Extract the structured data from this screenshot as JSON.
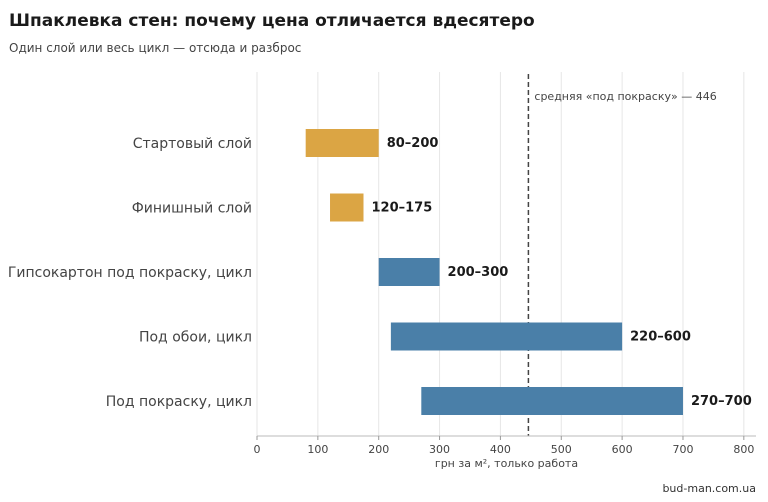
{
  "title": "Шпаклевка стен: почему цена отличается вдесятеро",
  "subtitle": "Один слой или весь цикл — отсюда и разброс",
  "source": "bud-man.com.ua",
  "colors": {
    "layer": "#dba544",
    "cycle": "#4a7fa8",
    "grid": "#e6e6e6",
    "reference_line": "#444444"
  },
  "chart_data": {
    "type": "bar",
    "orientation": "horizontal",
    "categories": [
      "Стартовый слой",
      "Финишный слой",
      "Гипсокартон под покраску, цикл",
      "Под обои, цикл",
      "Под покраску, цикл"
    ],
    "ranges": [
      [
        80,
        200
      ],
      [
        120,
        175
      ],
      [
        200,
        300
      ],
      [
        220,
        600
      ],
      [
        270,
        700
      ]
    ],
    "value_labels": [
      "80–200",
      "120–175",
      "200–300",
      "220–600",
      "270–700"
    ],
    "bar_colors": [
      "#dba544",
      "#dba544",
      "#4a7fa8",
      "#4a7fa8",
      "#4a7fa8"
    ],
    "xlabel": "грн за м², только работа",
    "xlim": [
      0,
      820
    ],
    "xticks": [
      0,
      100,
      200,
      300,
      400,
      500,
      600,
      700,
      800
    ],
    "grid": true,
    "reference_line": {
      "value": 446,
      "label": "средняя «под покраску» — 446"
    }
  }
}
